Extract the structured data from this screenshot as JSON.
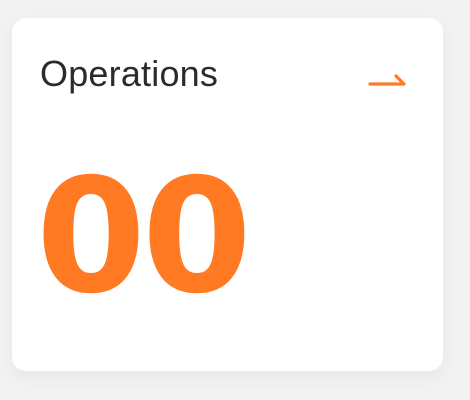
{
  "card": {
    "title": "Operations",
    "count": "00",
    "open_icon": "arrow-right-icon",
    "accent_color": "#ff7a22",
    "title_color": "#2b2b2b",
    "card_background": "#ffffff",
    "page_background": "#f2f2f2"
  }
}
